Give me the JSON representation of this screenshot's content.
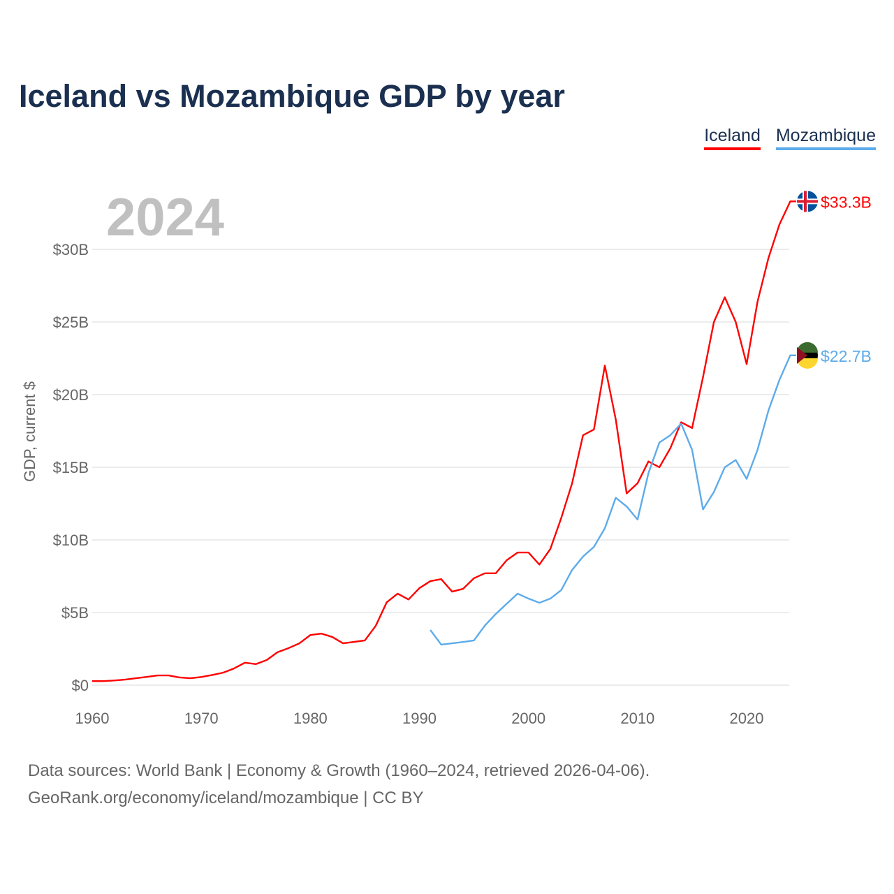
{
  "title": "Iceland vs Mozambique GDP by year",
  "year_label": "2024",
  "source_line1": "Data sources: World Bank | Economy & Growth (1960–2024, retrieved 2026-04-06).",
  "source_line2": "GeoRank.org/economy/iceland/mozambique | CC BY",
  "chart_data": {
    "type": "line",
    "title": "Iceland vs Mozambique GDP by year",
    "xlabel": "",
    "ylabel": "GDP, current $",
    "xlim": [
      1960,
      2024
    ],
    "ylim": [
      0,
      33.3
    ],
    "x_ticks": [
      1960,
      1970,
      1980,
      1990,
      2000,
      2010,
      2020
    ],
    "y_ticks": [
      {
        "v": 0,
        "label": "$0"
      },
      {
        "v": 5,
        "label": "$5B"
      },
      {
        "v": 10,
        "label": "$10B"
      },
      {
        "v": 15,
        "label": "$15B"
      },
      {
        "v": 20,
        "label": "$20B"
      },
      {
        "v": 25,
        "label": "$25B"
      },
      {
        "v": 30,
        "label": "$30B"
      }
    ],
    "grid": true,
    "legend_placement": "top-right",
    "series": [
      {
        "name": "Iceland",
        "color": "#ff0000",
        "end_label": "$33.3B",
        "flag": "iceland-flag",
        "start_year": 1960,
        "values": [
          0.28,
          0.28,
          0.32,
          0.38,
          0.48,
          0.57,
          0.67,
          0.67,
          0.53,
          0.48,
          0.56,
          0.7,
          0.86,
          1.15,
          1.55,
          1.45,
          1.73,
          2.27,
          2.55,
          2.88,
          3.45,
          3.55,
          3.32,
          2.88,
          2.98,
          3.08,
          4.09,
          5.7,
          6.3,
          5.9,
          6.68,
          7.16,
          7.3,
          6.44,
          6.63,
          7.36,
          7.7,
          7.7,
          8.6,
          9.13,
          9.13,
          8.3,
          9.37,
          11.5,
          13.9,
          17.2,
          17.6,
          22.0,
          18.3,
          13.2,
          13.9,
          15.4,
          15.0,
          16.3,
          18.1,
          17.7,
          21.2,
          25.0,
          26.7,
          25.0,
          22.1,
          26.4,
          29.4,
          31.7,
          33.3
        ]
      },
      {
        "name": "Mozambique",
        "color": "#5dabea",
        "end_label": "$22.7B",
        "flag": "mozambique-flag",
        "start_year": 1991,
        "values": [
          3.8,
          2.79,
          2.88,
          2.97,
          3.08,
          4.1,
          4.9,
          5.6,
          6.3,
          5.96,
          5.67,
          5.96,
          6.54,
          7.93,
          8.85,
          9.52,
          10.8,
          12.9,
          12.3,
          11.4,
          14.6,
          16.7,
          17.2,
          18.0,
          16.2,
          12.1,
          13.3,
          15.0,
          15.5,
          14.2,
          16.2,
          18.9,
          21.0,
          22.7
        ]
      }
    ]
  }
}
